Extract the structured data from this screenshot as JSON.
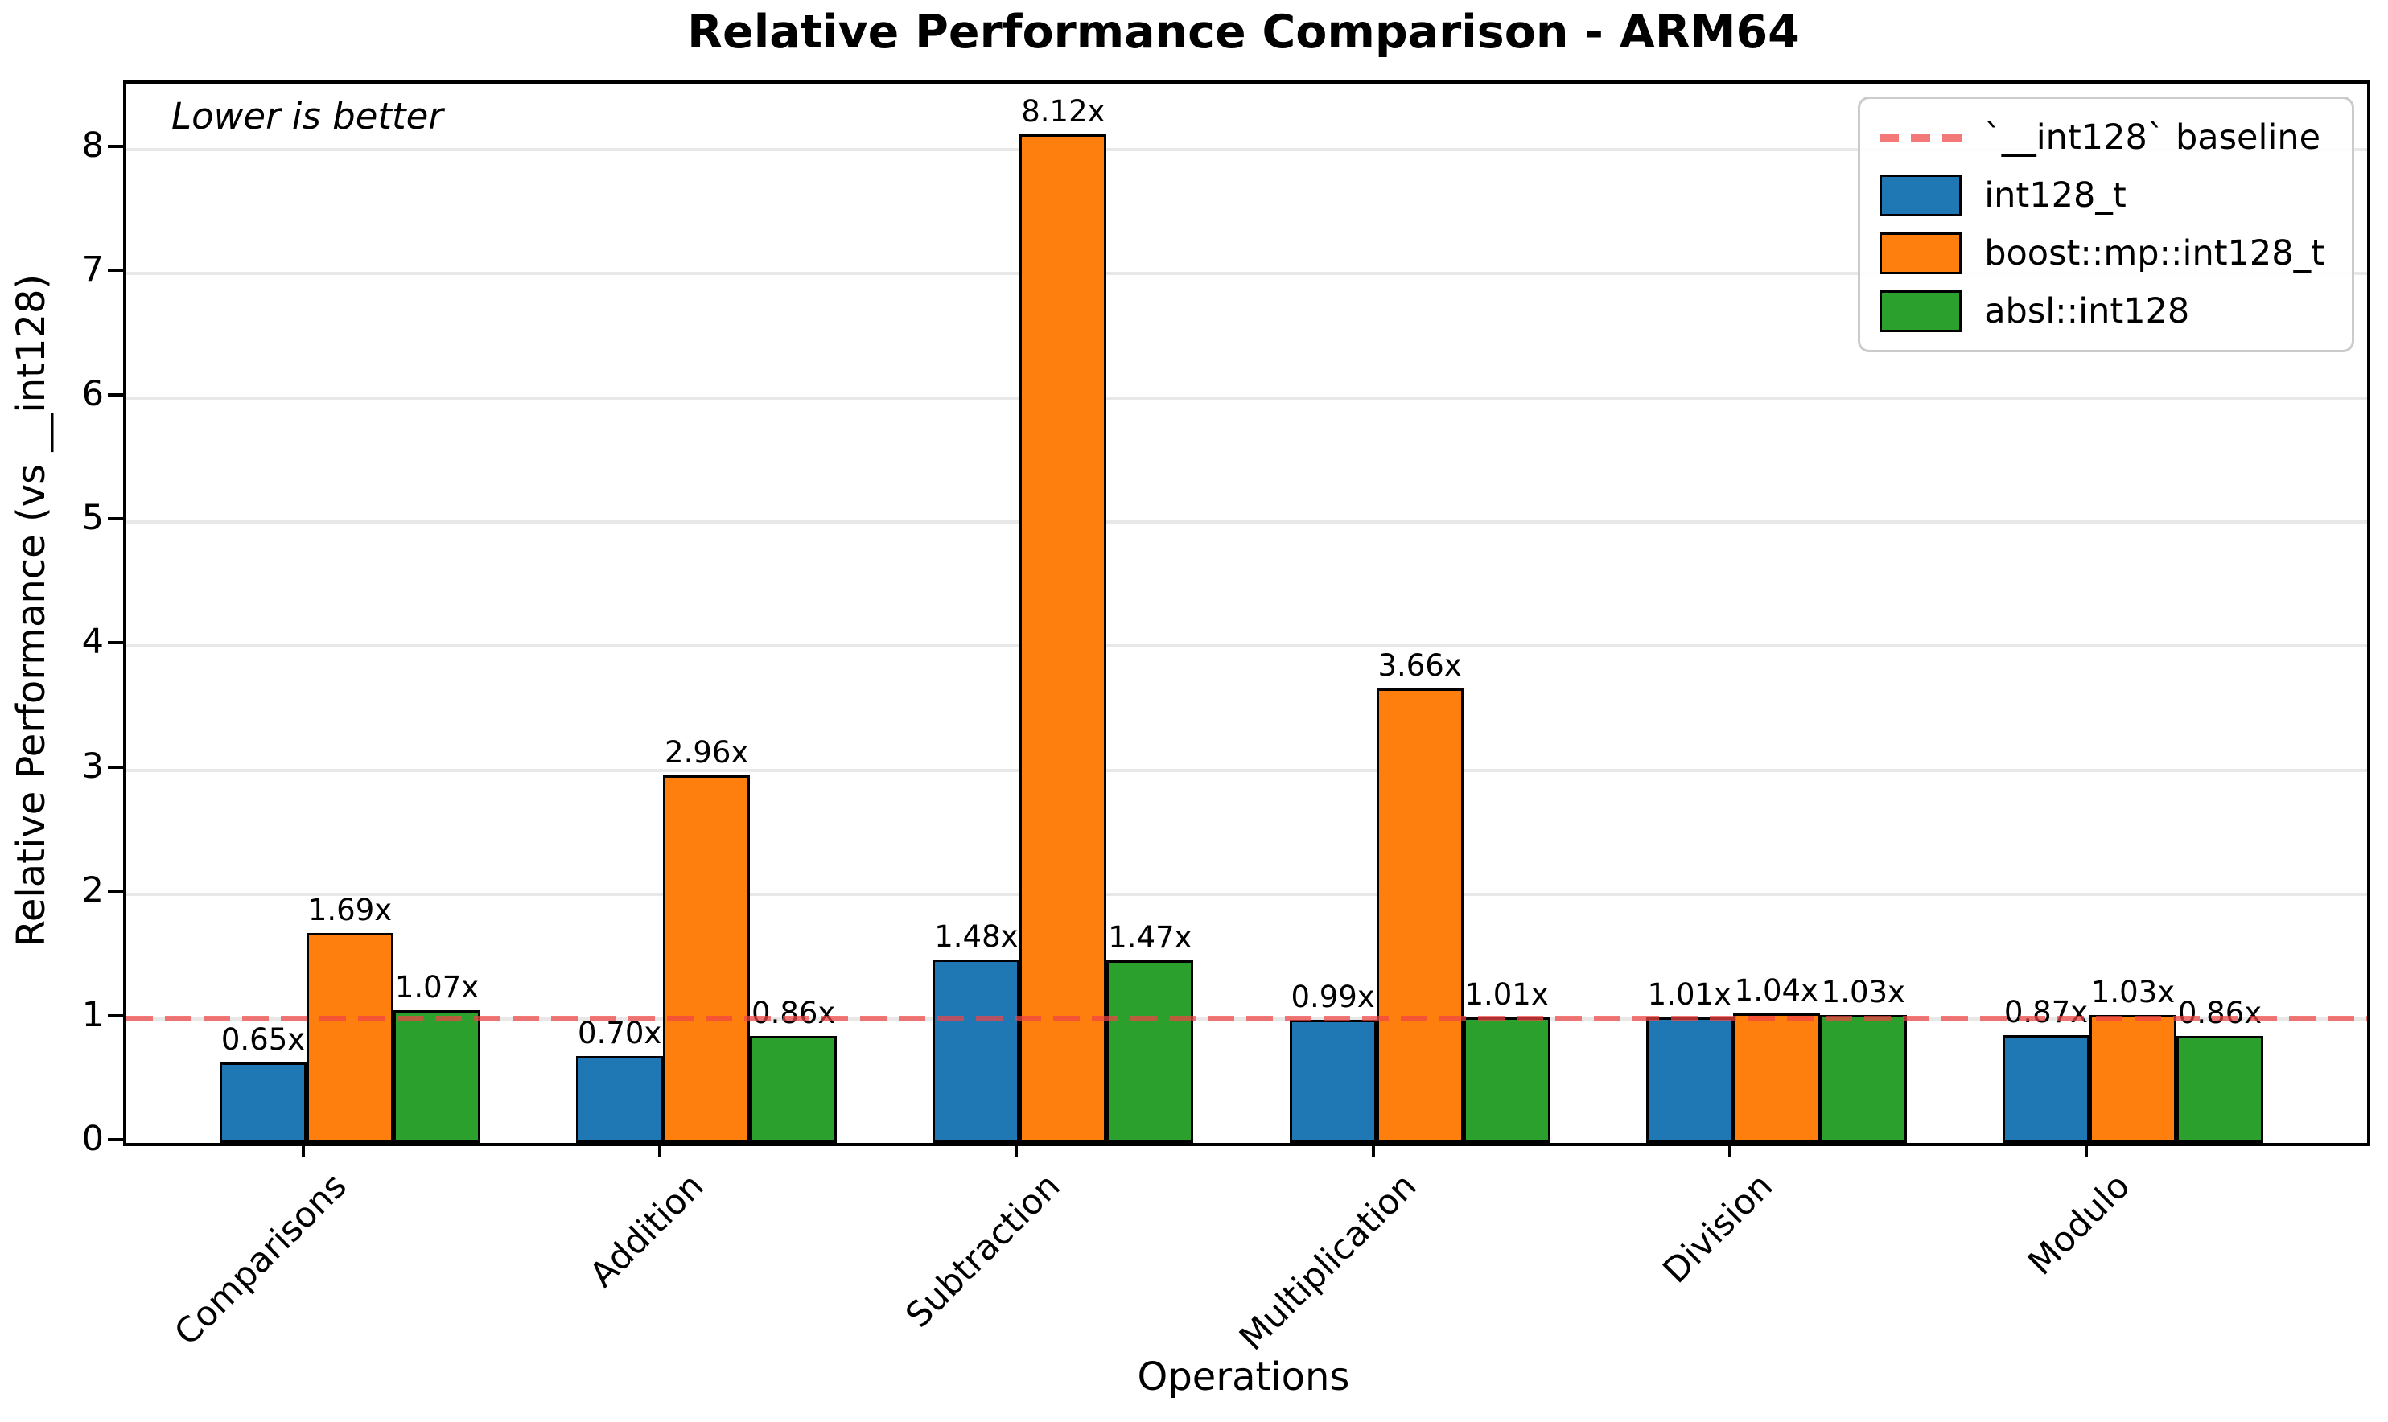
{
  "chart_data": {
    "type": "bar",
    "title": "Relative Performance Comparison - ARM64",
    "xlabel": "Operations",
    "ylabel": "Relative Performance (vs __int128)",
    "annotation": "Lower is better",
    "categories": [
      "Comparisons",
      "Addition",
      "Subtraction",
      "Multiplication",
      "Division",
      "Modulo"
    ],
    "series": [
      {
        "name": "int128_t",
        "color": "#1f77b4",
        "values": [
          0.65,
          0.7,
          1.48,
          0.99,
          1.01,
          0.87
        ],
        "labels": [
          "0.65x",
          "0.70x",
          "1.48x",
          "0.99x",
          "1.01x",
          "0.87x"
        ]
      },
      {
        "name": "boost::mp::int128_t",
        "color": "#ff7f0e",
        "values": [
          1.69,
          2.96,
          8.12,
          3.66,
          1.04,
          1.03
        ],
        "labels": [
          "1.69x",
          "2.96x",
          "8.12x",
          "3.66x",
          "1.04x",
          "1.03x"
        ]
      },
      {
        "name": "absl::int128",
        "color": "#2ca02c",
        "values": [
          1.07,
          0.86,
          1.47,
          1.01,
          1.03,
          0.86
        ],
        "labels": [
          "1.07x",
          "0.86x",
          "1.47x",
          "1.01x",
          "1.03x",
          "0.86x"
        ]
      }
    ],
    "baseline": {
      "value": 1,
      "label": "`__int128` baseline",
      "color": "#ef4444"
    },
    "yticks": [
      0,
      1,
      2,
      3,
      4,
      5,
      6,
      7,
      8
    ],
    "ylim": [
      0,
      8.53
    ],
    "grid": true,
    "legend_position": "upper right",
    "bar_edge_color": "#000000",
    "grid_color": "#e8e8e8"
  }
}
